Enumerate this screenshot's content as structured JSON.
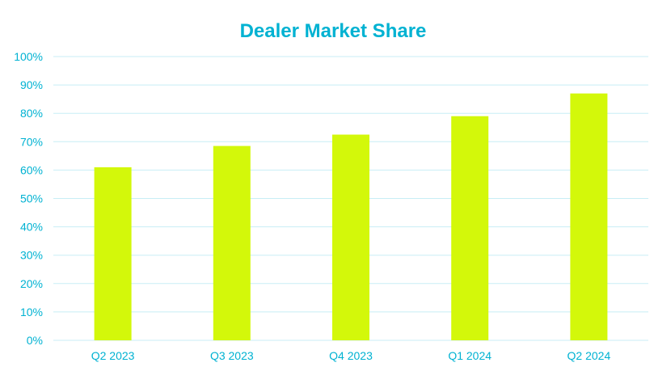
{
  "colors": {
    "title": "#00B2D2",
    "tick_labels": "#00B2D2",
    "gridlines": "#C8EEF5",
    "bars": "#D3F80A",
    "background": "#FFFFFF"
  },
  "chart_data": {
    "type": "bar",
    "title": "Dealer Market Share",
    "xlabel": "",
    "ylabel": "",
    "categories": [
      "Q2 2023",
      "Q3 2023",
      "Q4 2023",
      "Q1 2024",
      "Q2 2024"
    ],
    "values": [
      61,
      68.5,
      72.5,
      79,
      87
    ],
    "ylim": [
      0,
      100
    ],
    "yticks": [
      0,
      10,
      20,
      30,
      40,
      50,
      60,
      70,
      80,
      90,
      100
    ],
    "ytick_labels": [
      "0%",
      "10%",
      "20%",
      "30%",
      "40%",
      "50%",
      "60%",
      "70%",
      "80%",
      "90%",
      "100%"
    ],
    "grid": true,
    "legend": "none"
  }
}
